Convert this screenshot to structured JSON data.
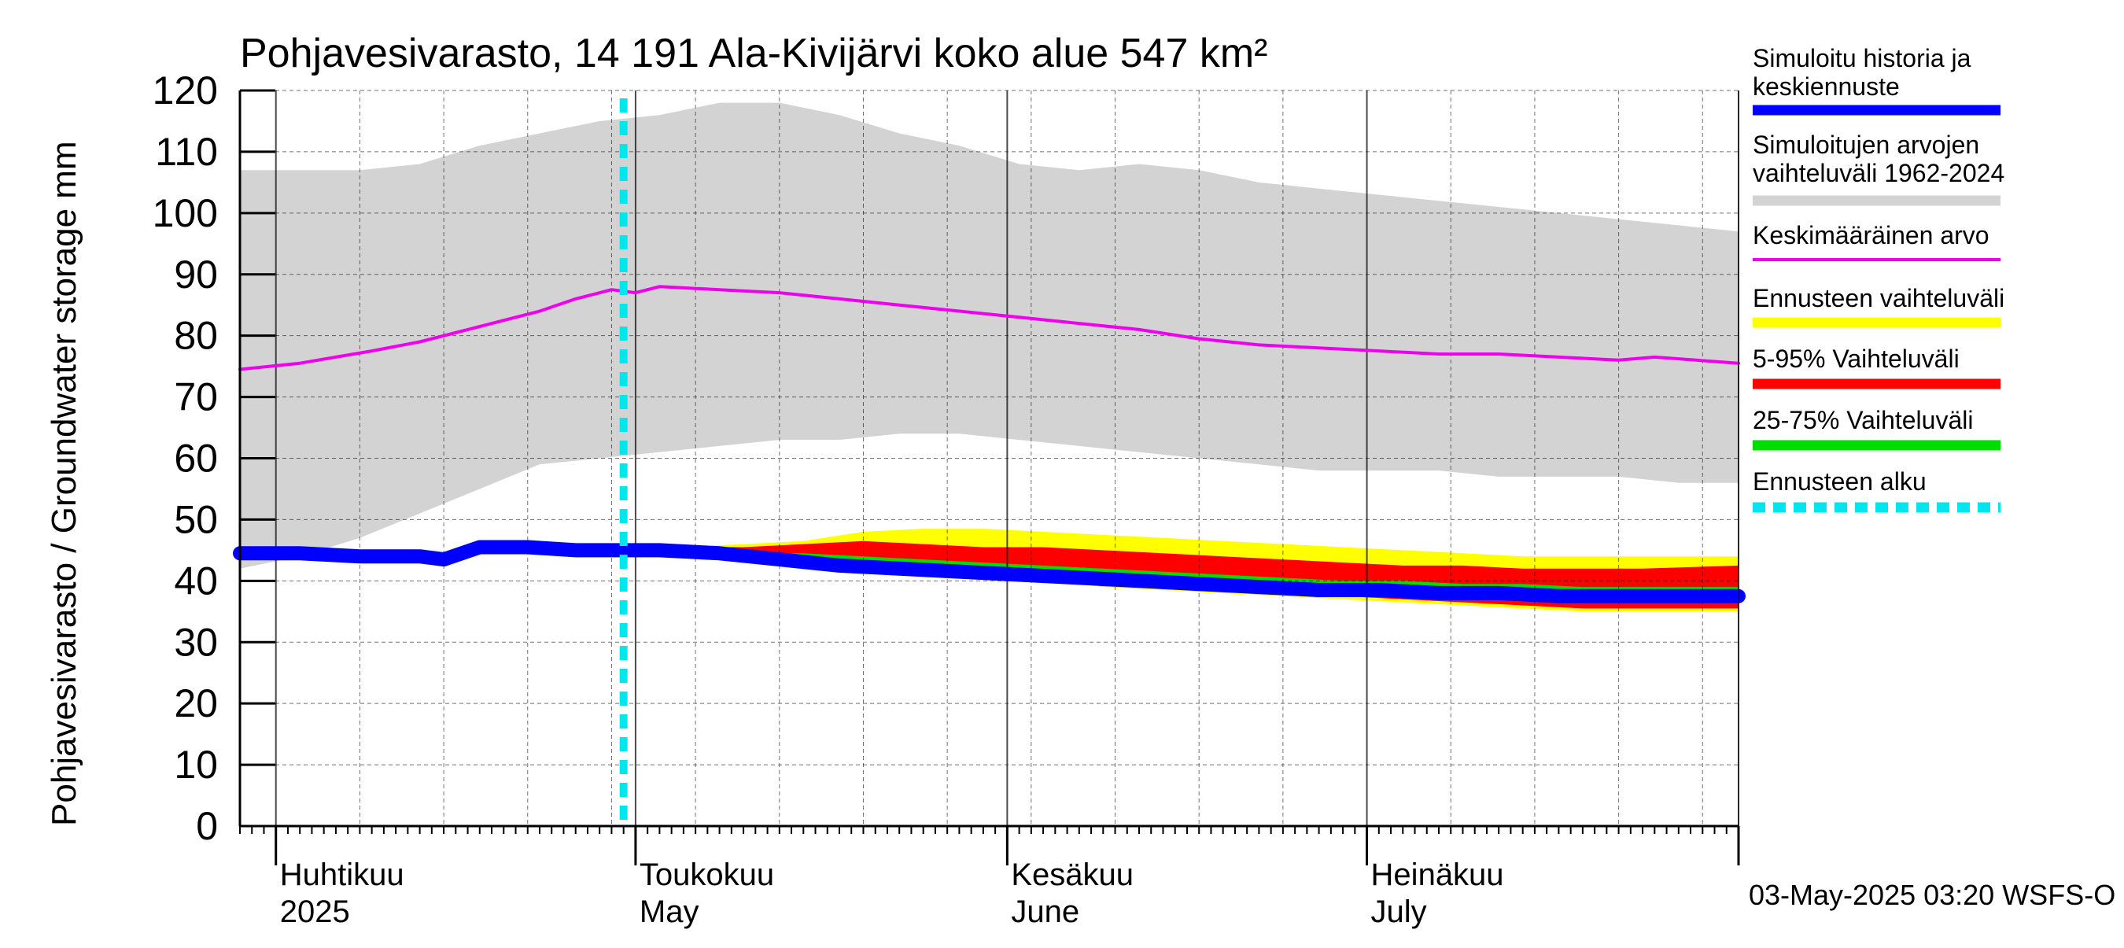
{
  "chart_data": {
    "type": "area",
    "title": "Pohjavesivarasto, 14 191 Ala-Kivijärvi koko alue 547 km²",
    "ylabel": "Pohjavesivarasto / Groundwater storage   mm",
    "ylim": [
      0,
      120
    ],
    "yticks": [
      0,
      10,
      20,
      30,
      40,
      50,
      60,
      70,
      80,
      90,
      100,
      110,
      120
    ],
    "xlim": [
      "2025-03-29",
      "2025-08-01"
    ],
    "grid": true,
    "legend_position": "right",
    "month_labels": [
      {
        "fi": "Huhtikuu",
        "en": "2025",
        "date": "2025-04-01"
      },
      {
        "fi": "Toukokuu",
        "en": "May",
        "date": "2025-05-01"
      },
      {
        "fi": "Kesäkuu",
        "en": "June",
        "date": "2025-06-01"
      },
      {
        "fi": "Heinäkuu",
        "en": "July",
        "date": "2025-07-01"
      }
    ],
    "forecast_start": "2025-04-30",
    "series": [
      {
        "name": "Simuloitujen arvojen vaihteluväli 1962-2024",
        "kind": "band",
        "color": "#d3d3d3",
        "x": [
          "2025-03-29",
          "2025-04-03",
          "2025-04-08",
          "2025-04-13",
          "2025-04-18",
          "2025-04-23",
          "2025-04-28",
          "2025-05-03",
          "2025-05-08",
          "2025-05-13",
          "2025-05-18",
          "2025-05-23",
          "2025-05-28",
          "2025-06-02",
          "2025-06-07",
          "2025-06-12",
          "2025-06-17",
          "2025-06-22",
          "2025-06-27",
          "2025-07-02",
          "2025-07-07",
          "2025-07-12",
          "2025-07-17",
          "2025-07-22",
          "2025-07-27",
          "2025-08-01"
        ],
        "low": [
          42,
          44,
          47,
          51,
          55,
          59,
          60,
          61,
          62,
          63,
          63,
          64,
          64,
          63,
          62,
          61,
          60,
          59,
          58,
          58,
          58,
          57,
          57,
          57,
          56,
          56
        ],
        "high": [
          107,
          107,
          107,
          108,
          111,
          113,
          115,
          116,
          118,
          118,
          116,
          113,
          111,
          108,
          107,
          108,
          107,
          105,
          104,
          103,
          102,
          101,
          100,
          99,
          98,
          97
        ]
      },
      {
        "name": "Ennusteen vaihteluväli",
        "kind": "band",
        "color": "#ffff00",
        "x": [
          "2025-04-30",
          "2025-05-05",
          "2025-05-10",
          "2025-05-15",
          "2025-05-20",
          "2025-05-25",
          "2025-05-30",
          "2025-06-04",
          "2025-06-09",
          "2025-06-14",
          "2025-06-19",
          "2025-06-24",
          "2025-06-29",
          "2025-07-04",
          "2025-07-09",
          "2025-07-14",
          "2025-07-19",
          "2025-07-24",
          "2025-08-01"
        ],
        "low": [
          45,
          44.5,
          44,
          43,
          42,
          41.5,
          40.5,
          40,
          39,
          38.5,
          38,
          37.5,
          37,
          36.5,
          36,
          35.5,
          35,
          35,
          35
        ],
        "high": [
          45,
          45.5,
          46,
          46.5,
          48,
          48.5,
          48.5,
          48,
          47.5,
          47,
          46.5,
          46,
          45.5,
          45,
          44.5,
          44,
          44,
          44,
          44
        ]
      },
      {
        "name": "5-95% Vaihteluväli",
        "kind": "band",
        "color": "#ff0000",
        "x": [
          "2025-04-30",
          "2025-05-05",
          "2025-05-10",
          "2025-05-15",
          "2025-05-20",
          "2025-05-25",
          "2025-05-30",
          "2025-06-04",
          "2025-06-09",
          "2025-06-14",
          "2025-06-19",
          "2025-06-24",
          "2025-06-29",
          "2025-07-04",
          "2025-07-09",
          "2025-07-14",
          "2025-07-19",
          "2025-07-24",
          "2025-08-01"
        ],
        "low": [
          45,
          44.5,
          44,
          43,
          42,
          41.5,
          41,
          40.5,
          39.5,
          39,
          38.5,
          38,
          37.5,
          37,
          36.5,
          36,
          35.5,
          35.5,
          35.5
        ],
        "high": [
          45,
          45.5,
          45.5,
          46,
          46.5,
          46,
          45.5,
          45.5,
          45,
          44.5,
          44,
          43.5,
          43,
          42.5,
          42.5,
          42,
          42,
          42,
          42.5
        ]
      },
      {
        "name": "25-75% Vaihteluväli",
        "kind": "band",
        "color": "#00dd00",
        "x": [
          "2025-04-30",
          "2025-05-05",
          "2025-05-10",
          "2025-05-15",
          "2025-05-20",
          "2025-05-25",
          "2025-05-30",
          "2025-06-04",
          "2025-06-09",
          "2025-06-14",
          "2025-06-19",
          "2025-06-24",
          "2025-06-29",
          "2025-07-04",
          "2025-07-09",
          "2025-07-14",
          "2025-07-19",
          "2025-07-24",
          "2025-08-01"
        ],
        "low": [
          45,
          44.5,
          44,
          43,
          42.5,
          42,
          41.5,
          41,
          40.5,
          40,
          39.5,
          39,
          38.5,
          38,
          37.5,
          37,
          37,
          36.5,
          36.5
        ],
        "high": [
          45,
          45,
          44.5,
          44.5,
          44,
          43.5,
          43,
          42.5,
          42,
          41.5,
          41,
          40.5,
          40,
          40,
          39.5,
          39.5,
          39,
          39,
          39
        ]
      },
      {
        "name": "Keskimääräinen arvo",
        "kind": "line",
        "color": "#ee00ee",
        "x": [
          "2025-03-29",
          "2025-04-03",
          "2025-04-06",
          "2025-04-09",
          "2025-04-13",
          "2025-04-17",
          "2025-04-20",
          "2025-04-23",
          "2025-04-26",
          "2025-04-29",
          "2025-05-01",
          "2025-05-03",
          "2025-05-08",
          "2025-05-13",
          "2025-05-18",
          "2025-05-23",
          "2025-05-28",
          "2025-06-02",
          "2025-06-07",
          "2025-06-12",
          "2025-06-17",
          "2025-06-22",
          "2025-06-27",
          "2025-07-02",
          "2025-07-07",
          "2025-07-12",
          "2025-07-17",
          "2025-07-22",
          "2025-07-25",
          "2025-08-01"
        ],
        "y": [
          74.5,
          75.5,
          76.5,
          77.5,
          79,
          81,
          82.5,
          84,
          86,
          87.5,
          87,
          88,
          87.5,
          87,
          86,
          85,
          84,
          83,
          82,
          81,
          79.5,
          78.5,
          78,
          77.5,
          77,
          77,
          76.5,
          76,
          76.5,
          75.5
        ]
      },
      {
        "name": "Simuloitu historia ja keskiennuste",
        "kind": "line",
        "color": "#0000ff",
        "x": [
          "2025-03-29",
          "2025-04-03",
          "2025-04-08",
          "2025-04-13",
          "2025-04-15",
          "2025-04-18",
          "2025-04-22",
          "2025-04-26",
          "2025-04-30",
          "2025-05-03",
          "2025-05-08",
          "2025-05-13",
          "2025-05-18",
          "2025-05-23",
          "2025-05-28",
          "2025-06-02",
          "2025-06-07",
          "2025-06-12",
          "2025-06-17",
          "2025-06-22",
          "2025-06-27",
          "2025-07-02",
          "2025-07-07",
          "2025-07-12",
          "2025-07-17",
          "2025-07-22",
          "2025-08-01"
        ],
        "y": [
          44.5,
          44.5,
          44,
          44,
          43.5,
          45.5,
          45.5,
          45,
          45,
          45,
          44.5,
          43.5,
          42.5,
          42,
          41.5,
          41,
          40.5,
          40,
          39.5,
          39,
          38.5,
          38.5,
          38,
          38,
          37.5,
          37.5,
          37.5
        ]
      },
      {
        "name": "Ennusteen alku",
        "kind": "vline",
        "color": "#00e5ee"
      }
    ],
    "legend": [
      {
        "label": "Simuloitu historia ja keskiennuste",
        "color": "#0000ff",
        "style": "solid"
      },
      {
        "label": "Simuloitujen arvojen vaihteluväli 1962-2024",
        "color": "#d3d3d3",
        "style": "solid"
      },
      {
        "label": "Keskimääräinen arvo",
        "color": "#ee00ee",
        "style": "thin"
      },
      {
        "label": "Ennusteen vaihteluväli",
        "color": "#ffff00",
        "style": "solid"
      },
      {
        "label": "5-95% Vaihteluväli",
        "color": "#ff0000",
        "style": "solid"
      },
      {
        "label": "25-75% Vaihteluväli",
        "color": "#00dd00",
        "style": "solid"
      },
      {
        "label": "Ennusteen alku",
        "color": "#00e5ee",
        "style": "dashed"
      }
    ],
    "footer": "03-May-2025 03:20 WSFS-O"
  }
}
